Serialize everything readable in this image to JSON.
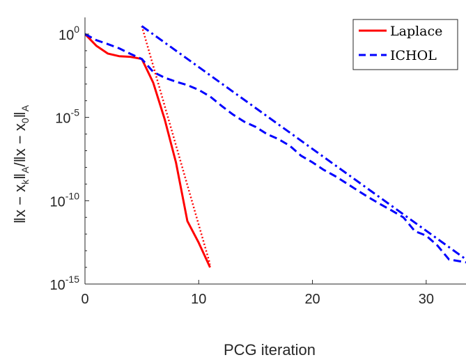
{
  "chart_data": {
    "type": "line",
    "title": "",
    "xlabel": "PCG iteration",
    "ylabel": "||x − x_k||_A / ||x − x_0||_A",
    "ylabel_parts": {
      "open": "‖x − x",
      "sub1": "k",
      "mid": "‖",
      "sub2": "A",
      "slash": "/‖x − x",
      "sub3": "0",
      "close": "‖",
      "sub4": "A"
    },
    "xlim": [
      0,
      33.5
    ],
    "ylim": [
      1e-15,
      10
    ],
    "yscale": "log",
    "grid": false,
    "legend_position": "top-right",
    "xticks": [
      0,
      10,
      20,
      30
    ],
    "xtick_labels": [
      "0",
      "10",
      "20",
      "30"
    ],
    "yticks": [
      {
        "value": 1,
        "base": "10",
        "exp": "0"
      },
      {
        "value": 1e-05,
        "base": "10",
        "exp": "-5"
      },
      {
        "value": 1e-10,
        "base": "10",
        "exp": "-10"
      },
      {
        "value": 1e-15,
        "base": "10",
        "exp": "-15"
      }
    ],
    "series": [
      {
        "name": "Laplace",
        "color": "#ff0000",
        "style": "solid",
        "in_legend": true,
        "x": [
          0,
          1,
          2,
          3,
          4,
          5,
          6,
          7,
          8,
          9,
          10,
          11
        ],
        "y": [
          1,
          0.2,
          0.068,
          0.047,
          0.043,
          0.032,
          0.0012,
          8e-06,
          2e-08,
          6e-12,
          3e-13,
          1e-14
        ]
      },
      {
        "name": "ICHOL",
        "color": "#0000ff",
        "style": "dashed",
        "in_legend": true,
        "x": [
          0,
          1,
          2,
          3,
          4,
          5,
          6,
          7,
          8,
          9,
          10,
          11,
          12,
          13,
          14,
          15,
          16,
          17,
          18,
          19,
          20,
          21,
          22,
          23,
          24,
          25,
          26,
          27,
          28,
          29,
          30,
          31,
          32,
          33.5
        ],
        "y": [
          1,
          0.43,
          0.25,
          0.14,
          0.065,
          0.032,
          0.0053,
          0.0024,
          0.0014,
          0.00086,
          0.00045,
          0.00018,
          5e-05,
          1.5e-05,
          5.5e-06,
          2.7e-06,
          1e-06,
          5e-07,
          2e-07,
          5e-08,
          2e-08,
          7e-09,
          3e-09,
          1.1e-09,
          4e-10,
          1.5e-10,
          6e-11,
          2.5e-11,
          1e-11,
          1.5e-12,
          8e-13,
          2e-13,
          3e-14,
          2e-14
        ]
      },
      {
        "name": "Laplace bound",
        "color": "#ff0000",
        "style": "dotted",
        "in_legend": false,
        "x": [
          5,
          11
        ],
        "y": [
          3,
          1.5e-14
        ]
      },
      {
        "name": "ICHOL bound",
        "color": "#0000ff",
        "style": "dashdot",
        "in_legend": false,
        "x": [
          5,
          33.5
        ],
        "y": [
          3,
          3e-14
        ]
      }
    ]
  }
}
